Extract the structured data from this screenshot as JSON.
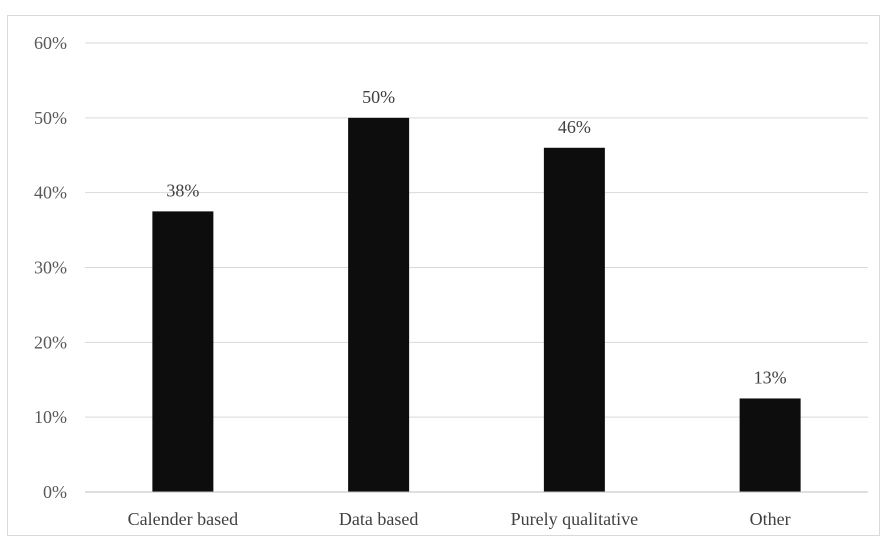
{
  "chart_data": {
    "type": "bar",
    "title": "",
    "xlabel": "",
    "ylabel": "",
    "categories": [
      "Calender based",
      "Data based",
      "Purely qualitative",
      "Other"
    ],
    "values": [
      37.5,
      50,
      46,
      12.5
    ],
    "data_labels": [
      "38%",
      "50%",
      "46%",
      "13%"
    ],
    "ylim": [
      0,
      60
    ],
    "yticks": [
      "0%",
      "10%",
      "20%",
      "30%",
      "40%",
      "50%",
      "60%"
    ],
    "grid": true,
    "legend": "none",
    "bar_color": "#0d0d0d"
  }
}
